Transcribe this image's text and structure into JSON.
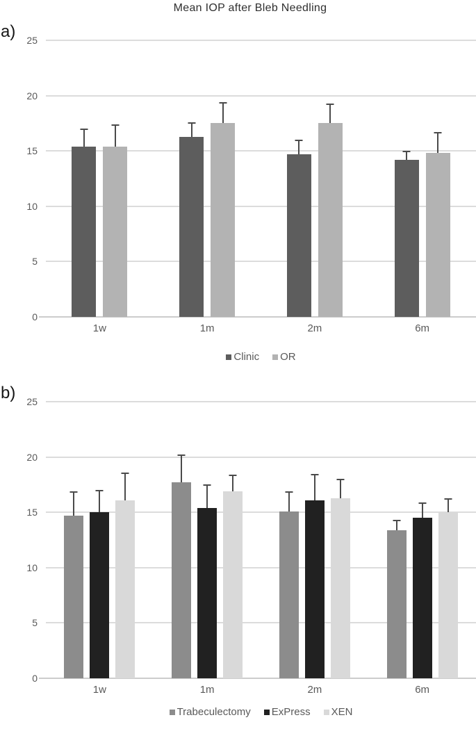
{
  "title": "Mean IOP after Bleb Needling",
  "panels": [
    {
      "label": "a)"
    },
    {
      "label": "b)"
    }
  ],
  "chart_data": [
    {
      "type": "bar",
      "panel": "a",
      "categories": [
        "1w",
        "1m",
        "2m",
        "6m"
      ],
      "series": [
        {
          "name": "Clinic",
          "color": "#5d5d5d",
          "values": [
            15.4,
            16.3,
            14.7,
            14.2
          ],
          "upper_errors": [
            1.6,
            1.3,
            1.3,
            0.8
          ]
        },
        {
          "name": "OR",
          "color": "#b3b3b3",
          "values": [
            15.4,
            17.5,
            17.5,
            14.8
          ],
          "upper_errors": [
            2.0,
            1.9,
            1.8,
            1.9
          ]
        }
      ],
      "ylim": [
        0,
        25
      ],
      "yticks": [
        0,
        5,
        10,
        15,
        20,
        25
      ],
      "xlabel": "",
      "ylabel": "",
      "grid": true,
      "legend_position": "bottom"
    },
    {
      "type": "bar",
      "panel": "b",
      "categories": [
        "1w",
        "1m",
        "2m",
        "6m"
      ],
      "series": [
        {
          "name": "Trabeculectomy",
          "color": "#8c8c8c",
          "values": [
            14.7,
            17.7,
            15.1,
            13.4
          ],
          "upper_errors": [
            2.2,
            2.5,
            1.8,
            0.9
          ]
        },
        {
          "name": "ExPress",
          "color": "#212121",
          "values": [
            15.0,
            15.4,
            16.1,
            14.5
          ],
          "upper_errors": [
            2.0,
            2.1,
            2.4,
            1.4
          ]
        },
        {
          "name": "XEN",
          "color": "#d9d9d9",
          "values": [
            16.1,
            16.9,
            16.3,
            15.0
          ],
          "upper_errors": [
            2.5,
            1.5,
            1.7,
            1.3
          ]
        }
      ],
      "ylim": [
        0,
        25
      ],
      "yticks": [
        0,
        5,
        10,
        15,
        20,
        25
      ],
      "xlabel": "",
      "ylabel": "",
      "grid": true,
      "legend_position": "bottom"
    }
  ],
  "colors": {
    "gridline": "#dcdcdc",
    "axis_line": "#cccccc",
    "error_bar": "#4a4a4a",
    "tick_label": "#595959",
    "title_text": "#2f2f2f"
  }
}
